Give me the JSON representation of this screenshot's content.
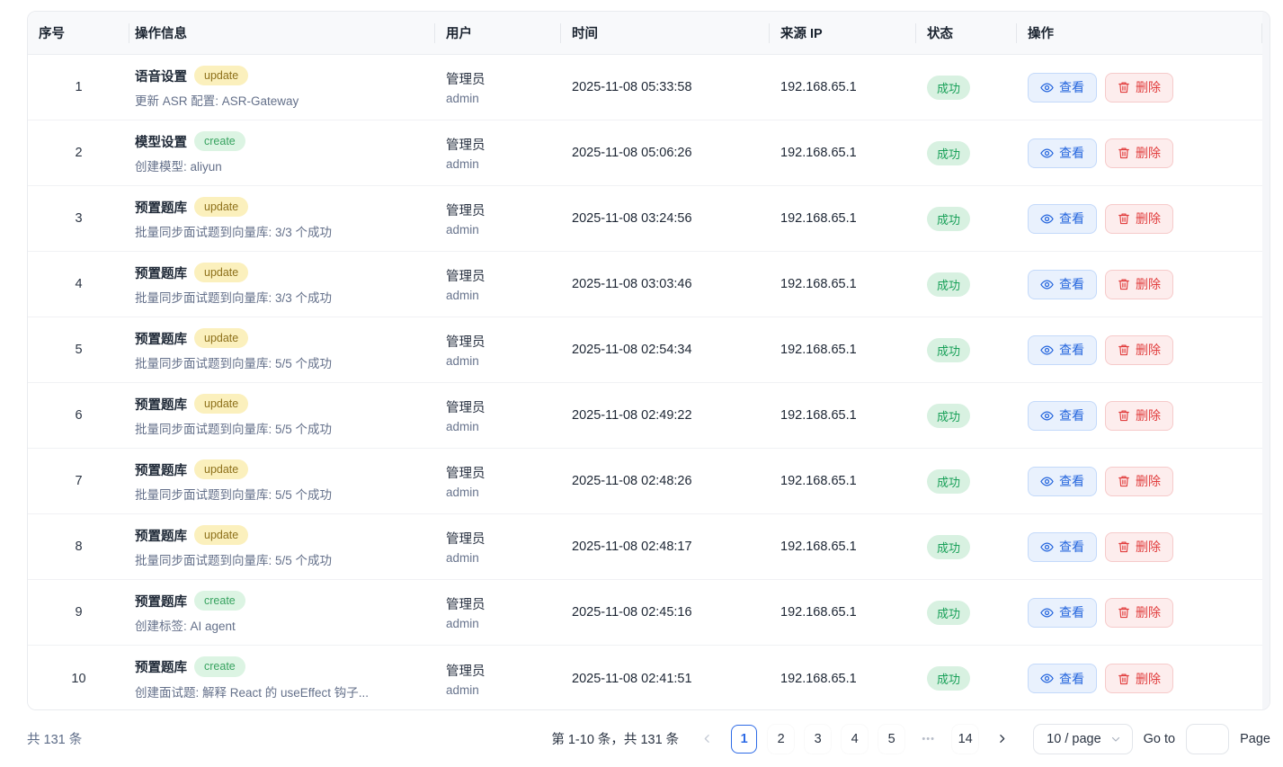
{
  "table": {
    "columns": [
      {
        "label": "序号"
      },
      {
        "label": "操作信息"
      },
      {
        "label": "用户"
      },
      {
        "label": "时间"
      },
      {
        "label": "来源 IP"
      },
      {
        "label": "状态"
      },
      {
        "label": "操作"
      }
    ],
    "view_label": "查看",
    "delete_label": "删除",
    "rows": [
      {
        "index": "1",
        "module": "语音设置",
        "action": "update",
        "desc": "更新 ASR 配置: ASR-Gateway",
        "user_name": "管理员",
        "user_account": "admin",
        "time": "2025-11-08 05:33:58",
        "ip": "192.168.65.1",
        "status": "成功"
      },
      {
        "index": "2",
        "module": "模型设置",
        "action": "create",
        "desc": "创建模型: aliyun",
        "user_name": "管理员",
        "user_account": "admin",
        "time": "2025-11-08 05:06:26",
        "ip": "192.168.65.1",
        "status": "成功"
      },
      {
        "index": "3",
        "module": "预置题库",
        "action": "update",
        "desc": "批量同步面试题到向量库: 3/3 个成功",
        "user_name": "管理员",
        "user_account": "admin",
        "time": "2025-11-08 03:24:56",
        "ip": "192.168.65.1",
        "status": "成功"
      },
      {
        "index": "4",
        "module": "预置题库",
        "action": "update",
        "desc": "批量同步面试题到向量库: 3/3 个成功",
        "user_name": "管理员",
        "user_account": "admin",
        "time": "2025-11-08 03:03:46",
        "ip": "192.168.65.1",
        "status": "成功"
      },
      {
        "index": "5",
        "module": "预置题库",
        "action": "update",
        "desc": "批量同步面试题到向量库: 5/5 个成功",
        "user_name": "管理员",
        "user_account": "admin",
        "time": "2025-11-08 02:54:34",
        "ip": "192.168.65.1",
        "status": "成功"
      },
      {
        "index": "6",
        "module": "预置题库",
        "action": "update",
        "desc": "批量同步面试题到向量库: 5/5 个成功",
        "user_name": "管理员",
        "user_account": "admin",
        "time": "2025-11-08 02:49:22",
        "ip": "192.168.65.1",
        "status": "成功"
      },
      {
        "index": "7",
        "module": "预置题库",
        "action": "update",
        "desc": "批量同步面试题到向量库: 5/5 个成功",
        "user_name": "管理员",
        "user_account": "admin",
        "time": "2025-11-08 02:48:26",
        "ip": "192.168.65.1",
        "status": "成功"
      },
      {
        "index": "8",
        "module": "预置题库",
        "action": "update",
        "desc": "批量同步面试题到向量库: 5/5 个成功",
        "user_name": "管理员",
        "user_account": "admin",
        "time": "2025-11-08 02:48:17",
        "ip": "192.168.65.1",
        "status": "成功"
      },
      {
        "index": "9",
        "module": "预置题库",
        "action": "create",
        "desc": "创建标签: AI agent",
        "user_name": "管理员",
        "user_account": "admin",
        "time": "2025-11-08 02:45:16",
        "ip": "192.168.65.1",
        "status": "成功"
      },
      {
        "index": "10",
        "module": "预置题库",
        "action": "create",
        "desc": "创建面试题: 解释 React 的 useEffect 钩子...",
        "user_name": "管理员",
        "user_account": "admin",
        "time": "2025-11-08 02:41:51",
        "ip": "192.168.65.1",
        "status": "成功"
      }
    ]
  },
  "footer": {
    "total_left": "共 131 条",
    "range_text": "第 1-10 条，共 131 条",
    "pages": [
      "1",
      "2",
      "3",
      "4",
      "5",
      "•••",
      "14"
    ],
    "active_page": "1",
    "ellipsis_token": "•••",
    "page_size": "10 / page",
    "goto_label": "Go to",
    "page_label": "Page"
  },
  "colors": {
    "accent_blue": "#2e6be6",
    "view_button_text": "#2465dd",
    "view_button_bg": "#e9f1fd",
    "delete_button_text": "#e13d3d",
    "delete_button_bg": "#fdeded",
    "badge_update_bg": "#fbf0bd",
    "badge_update_text": "#8e711b",
    "badge_create_bg": "#dcf4e3",
    "badge_create_text": "#38a360",
    "status_success_bg": "#d8f1e1",
    "status_success_text": "#18a058",
    "header_bg": "#f8f9fb"
  }
}
